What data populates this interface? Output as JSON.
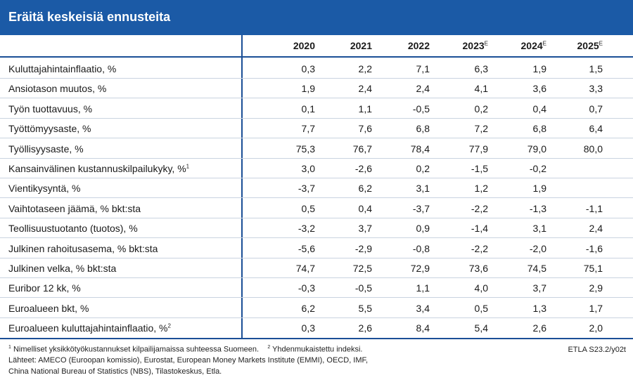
{
  "title": "Eräitä keskeisiä ennusteita",
  "columns": [
    {
      "year": "2020",
      "sup": ""
    },
    {
      "year": "2021",
      "sup": ""
    },
    {
      "year": "2022",
      "sup": ""
    },
    {
      "year": "2023",
      "sup": "E"
    },
    {
      "year": "2024",
      "sup": "E"
    },
    {
      "year": "2025",
      "sup": "E"
    }
  ],
  "rows": [
    {
      "label": "Kuluttajahintainflaatio, %",
      "sup": "",
      "values": [
        "0,3",
        "2,2",
        "7,1",
        "6,3",
        "1,9",
        "1,5"
      ]
    },
    {
      "label": "Ansiotason muutos, %",
      "sup": "",
      "values": [
        "1,9",
        "2,4",
        "2,4",
        "4,1",
        "3,6",
        "3,3"
      ]
    },
    {
      "label": "Työn tuottavuus, %",
      "sup": "",
      "values": [
        "0,1",
        "1,1",
        "-0,5",
        "0,2",
        "0,4",
        "0,7"
      ]
    },
    {
      "label": "Työttömyysaste, %",
      "sup": "",
      "values": [
        "7,7",
        "7,6",
        "6,8",
        "7,2",
        "6,8",
        "6,4"
      ]
    },
    {
      "label": "Työllisyysaste, %",
      "sup": "",
      "values": [
        "75,3",
        "76,7",
        "78,4",
        "77,9",
        "79,0",
        "80,0"
      ]
    },
    {
      "label": "Kansainvälinen kustannuskilpailukyky, %",
      "sup": "1",
      "values": [
        "3,0",
        "-2,6",
        "0,2",
        "-1,5",
        "-0,2",
        ""
      ]
    },
    {
      "label": "Vientikysyntä, %",
      "sup": "",
      "values": [
        "-3,7",
        "6,2",
        "3,1",
        "1,2",
        "1,9",
        ""
      ]
    },
    {
      "label": "Vaihtotaseen jäämä, % bkt:sta",
      "sup": "",
      "values": [
        "0,5",
        "0,4",
        "-3,7",
        "-2,2",
        "-1,3",
        "-1,1"
      ]
    },
    {
      "label": "Teollisuustuotanto (tuotos), %",
      "sup": "",
      "values": [
        "-3,2",
        "3,7",
        "0,9",
        "-1,4",
        "3,1",
        "2,4"
      ]
    },
    {
      "label": "Julkinen rahoitusasema, % bkt:sta",
      "sup": "",
      "values": [
        "-5,6",
        "-2,9",
        "-0,8",
        "-2,2",
        "-2,0",
        "-1,6"
      ]
    },
    {
      "label": "Julkinen velka, % bkt:sta",
      "sup": "",
      "values": [
        "74,7",
        "72,5",
        "72,9",
        "73,6",
        "74,5",
        "75,1"
      ]
    },
    {
      "label": "Euribor 12 kk, %",
      "sup": "",
      "values": [
        "-0,3",
        "-0,5",
        "1,1",
        "4,0",
        "3,7",
        "2,9"
      ]
    },
    {
      "label": "Euroalueen bkt, %",
      "sup": "",
      "values": [
        "6,2",
        "5,5",
        "3,4",
        "0,5",
        "1,3",
        "1,7"
      ]
    },
    {
      "label": "Euroalueen kuluttajahintainflaatio, %",
      "sup": "2",
      "values": [
        "0,3",
        "2,6",
        "8,4",
        "5,4",
        "2,6",
        "2,0"
      ]
    }
  ],
  "footnotes": {
    "note1_sup": "1",
    "note1": "Nimelliset yksikkötyökustannukset kilpailijamaissa suhteessa Suomeen.",
    "note2_sup": "2",
    "note2": "Yhdenmukaistettu indeksi.",
    "sources_line1": "Lähteet: AMECO (Euroopan komissio), Eurostat, European Money Markets Institute (EMMI), OECD, IMF,",
    "sources_line2": "China National Bureau of Statistics (NBS), Tilastokeskus, Etla.",
    "code": "ETLA S23.2/y02t"
  },
  "colors": {
    "header": "#1b5aa6",
    "rule": "#1b4f96",
    "row_separator": "#c9d3e0"
  }
}
